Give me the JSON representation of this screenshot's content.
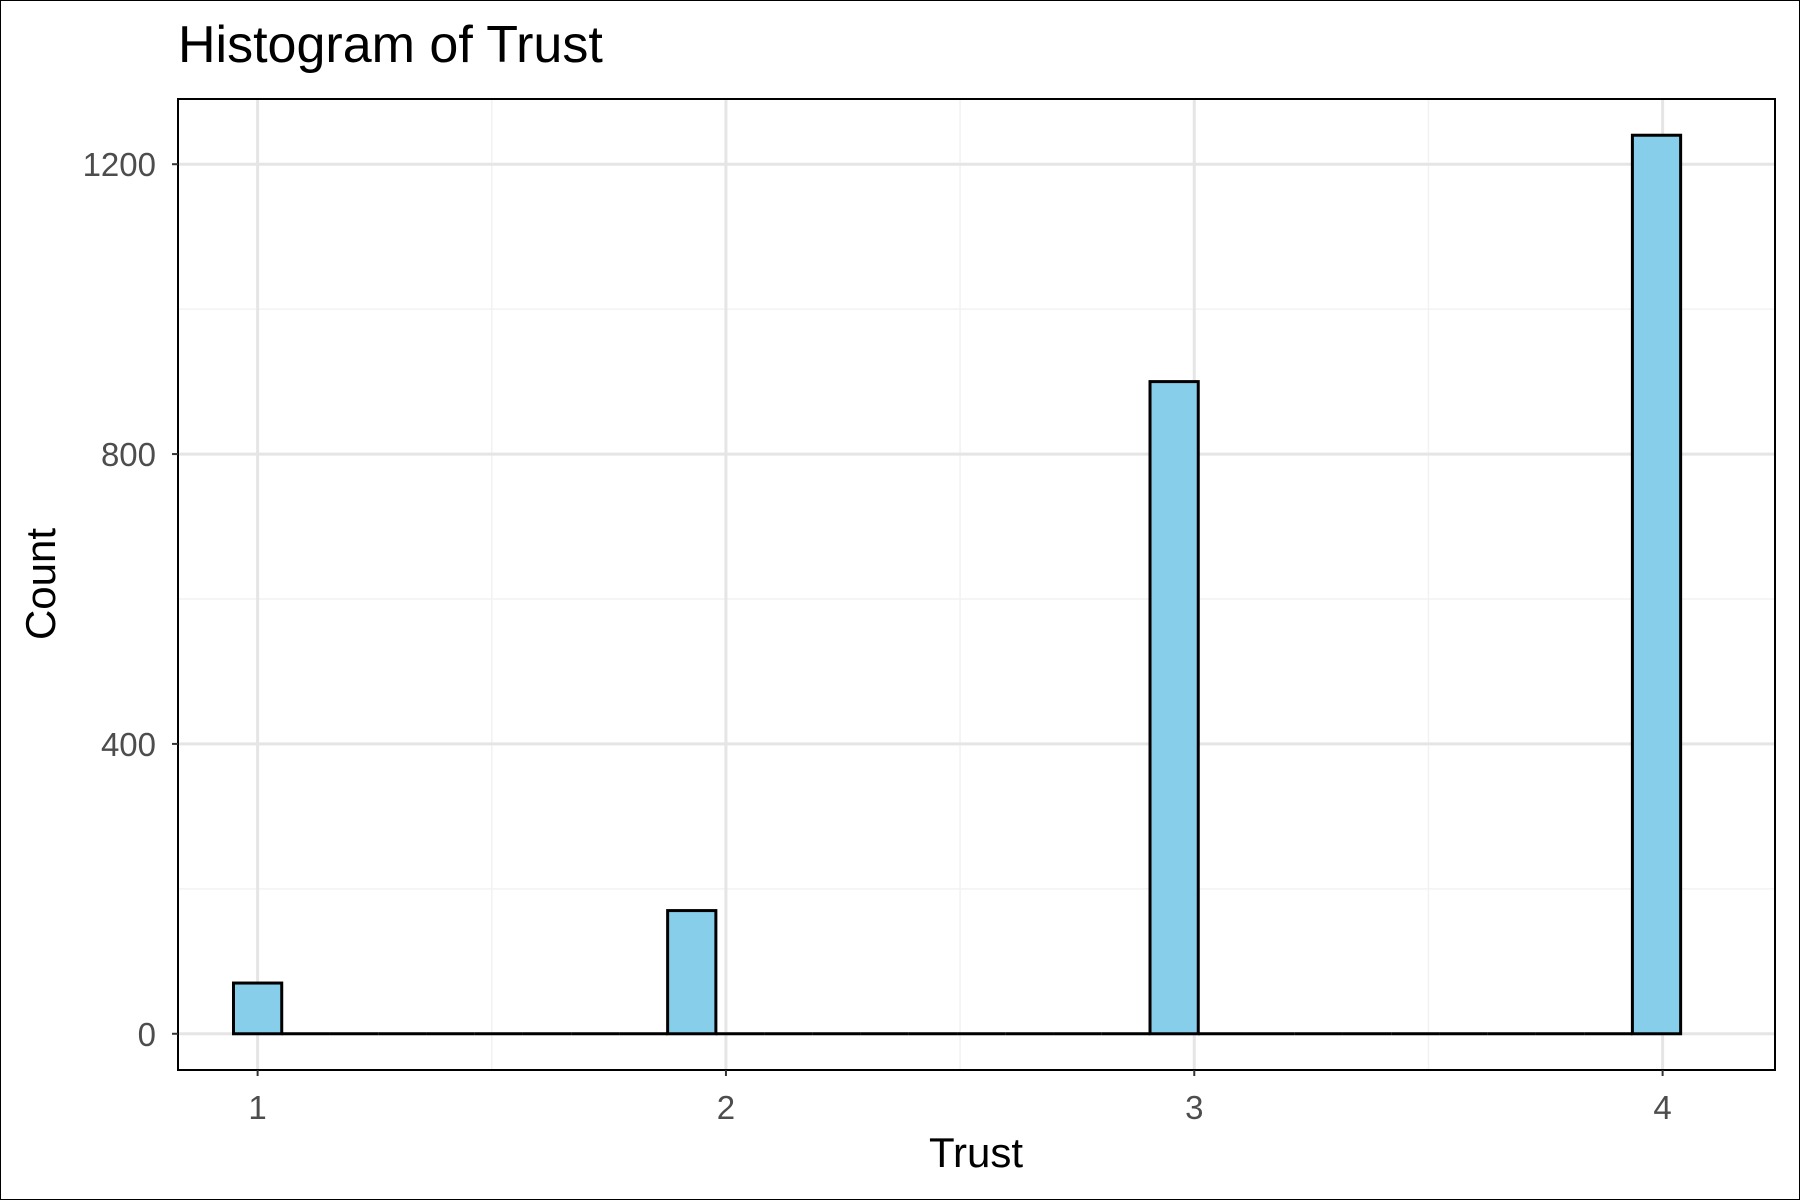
{
  "chart_data": {
    "type": "bar",
    "title": "Histogram of Trust",
    "xlabel": "Trust",
    "ylabel": "Count",
    "x_ticks": [
      "1",
      "2",
      "3",
      "4"
    ],
    "y_ticks": [
      "0",
      "400",
      "800",
      "1200"
    ],
    "xlim": [
      0.83,
      4.24
    ],
    "ylim": [
      -50,
      1290
    ],
    "bin_width": 0.103,
    "bins": [
      {
        "x": 1.0,
        "value": 70
      },
      {
        "x": 1.103,
        "value": 0
      },
      {
        "x": 1.206,
        "value": 0
      },
      {
        "x": 1.309,
        "value": 0
      },
      {
        "x": 1.412,
        "value": 0
      },
      {
        "x": 1.515,
        "value": 0
      },
      {
        "x": 1.618,
        "value": 0
      },
      {
        "x": 1.721,
        "value": 0
      },
      {
        "x": 1.824,
        "value": 0
      },
      {
        "x": 1.927,
        "value": 170
      },
      {
        "x": 2.03,
        "value": 0
      },
      {
        "x": 2.133,
        "value": 0
      },
      {
        "x": 2.236,
        "value": 0
      },
      {
        "x": 2.339,
        "value": 0
      },
      {
        "x": 2.442,
        "value": 0
      },
      {
        "x": 2.545,
        "value": 0
      },
      {
        "x": 2.648,
        "value": 0
      },
      {
        "x": 2.751,
        "value": 0
      },
      {
        "x": 2.854,
        "value": 0
      },
      {
        "x": 2.957,
        "value": 900
      },
      {
        "x": 3.06,
        "value": 0
      },
      {
        "x": 3.163,
        "value": 0
      },
      {
        "x": 3.266,
        "value": 0
      },
      {
        "x": 3.369,
        "value": 0
      },
      {
        "x": 3.472,
        "value": 0
      },
      {
        "x": 3.575,
        "value": 0
      },
      {
        "x": 3.678,
        "value": 0
      },
      {
        "x": 3.781,
        "value": 0
      },
      {
        "x": 3.884,
        "value": 0
      },
      {
        "x": 3.987,
        "value": 1240
      }
    ],
    "grid": true,
    "colors": {
      "bar_fill": "#87ceeb",
      "bar_stroke": "#000000",
      "grid_major": "#e5e5e5",
      "grid_minor": "#f2f2f2",
      "tick_text": "#4d4d4d"
    }
  }
}
